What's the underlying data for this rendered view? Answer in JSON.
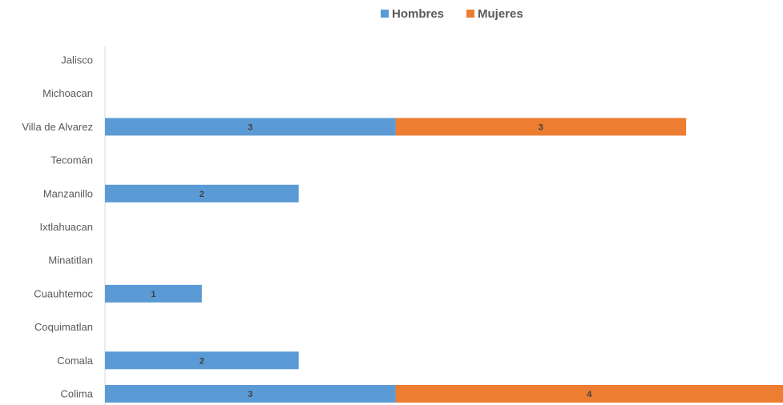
{
  "chart_data": {
    "type": "bar",
    "orientation": "horizontal",
    "stacked": true,
    "categories": [
      "Jalisco",
      "Michoacan",
      "Villa de Alvarez",
      "Tecomán",
      "Manzanillo",
      "Ixtlahuacan",
      "Minatitlan",
      "Cuauhtemoc",
      "Coquimatlan",
      "Comala",
      "Colima"
    ],
    "series": [
      {
        "name": "Hombres",
        "color": "#5B9BD5",
        "values": [
          0,
          0,
          3,
          0,
          2,
          0,
          0,
          1,
          0,
          2,
          3
        ]
      },
      {
        "name": "Mujeres",
        "color": "#ED7D31",
        "values": [
          0,
          0,
          3,
          0,
          0,
          0,
          0,
          0,
          0,
          0,
          4
        ]
      }
    ],
    "xlim": [
      0,
      7
    ],
    "legend_position": "top",
    "grid": false
  }
}
